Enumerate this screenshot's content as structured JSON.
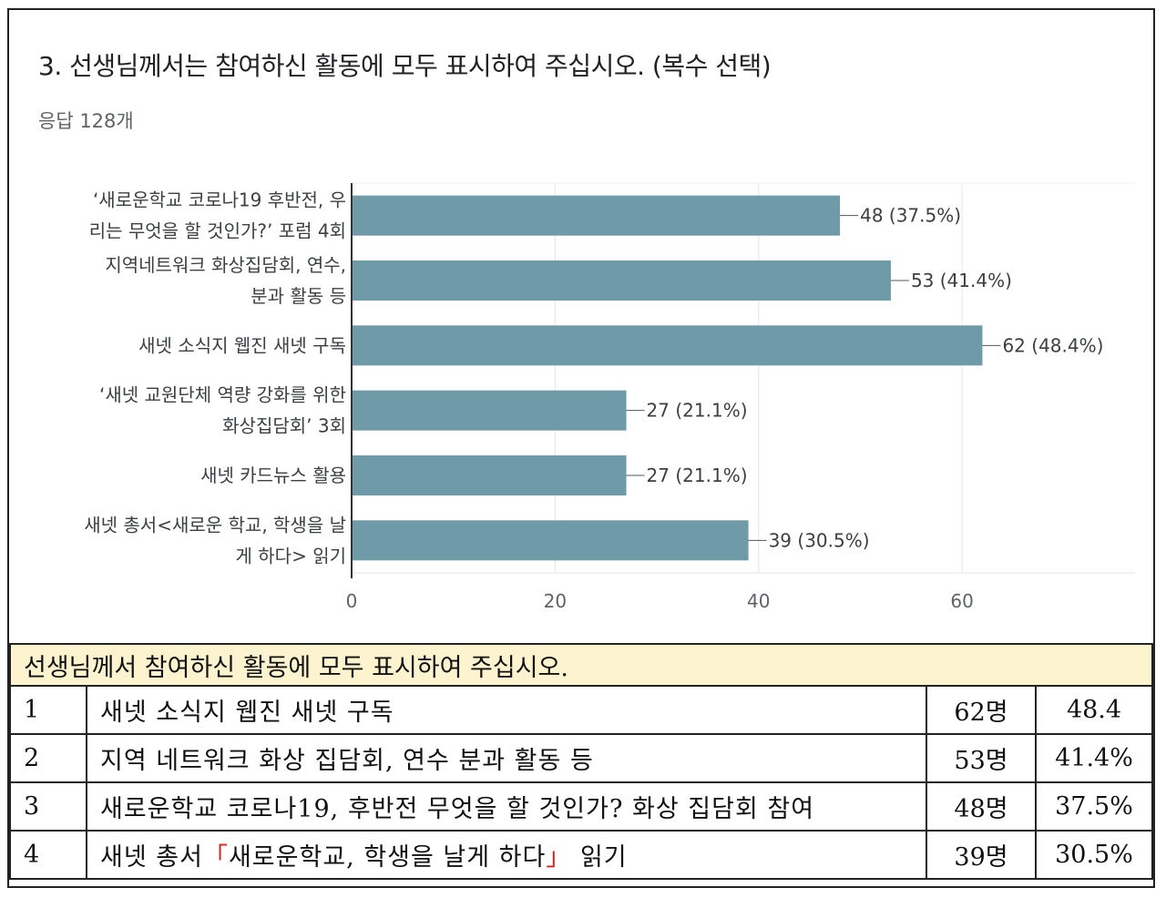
{
  "question": {
    "title": "3. 선생님께서는 참여하신 활동에 모두 표시하여 주십시오. (복수 선택)",
    "responses": "응답 128개"
  },
  "chart_data": {
    "type": "bar",
    "orientation": "horizontal",
    "categories": [
      [
        "‘새로운학교 코로나19 후반전, 우",
        "리는 무엇을 할 것인가?’ 포럼 4회"
      ],
      [
        "지역네트워크 화상집담회, 연수,",
        "분과 활동 등"
      ],
      [
        "새넷 소식지 웹진 새넷 구독"
      ],
      [
        "‘새넷 교원단체 역량 강화를 위한",
        "화상집담회’ 3회"
      ],
      [
        "새넷 카드뉴스 활용"
      ],
      [
        "새넷 총서<새로운 학교, 학생을 날",
        "게 하다> 읽기"
      ]
    ],
    "values": [
      48,
      53,
      62,
      27,
      27,
      39
    ],
    "data_labels": [
      "48 (37.5%)",
      "53 (41.4%)",
      "62 (48.4%)",
      "27 (21.1%)",
      "27 (21.1%)",
      "39 (30.5%)"
    ],
    "xlim": [
      0,
      77
    ],
    "xticks": [
      0,
      20,
      40,
      60
    ],
    "bar_color": "#6f9aa7",
    "grid": true
  },
  "table": {
    "header": "선생님께서 참여하신 활동에 모두 표시하여 주십시오.",
    "rows": [
      {
        "idx": "1",
        "text": "새넷 소식지 웹진 새넷 구독",
        "count": "62명",
        "pct": "48.4"
      },
      {
        "idx": "2",
        "text": "지역 네트워크 화상 집담회, 연수 분과 활동 등",
        "count": "53명",
        "pct": "41.4%"
      },
      {
        "idx": "3",
        "text": "새로운학교 코로나19, 후반전 무엇을 할 것인가? 화상 집담회 참여",
        "count": "48명",
        "pct": "37.5%"
      },
      {
        "idx": "4",
        "text_pre": "새넷 총서",
        "bracket_open": "「",
        "text_mid": "새로운학교, 학생을 날게 하다",
        "bracket_close": "」",
        "text_post": " 읽기",
        "count": "39명",
        "pct": "30.5%"
      }
    ]
  }
}
